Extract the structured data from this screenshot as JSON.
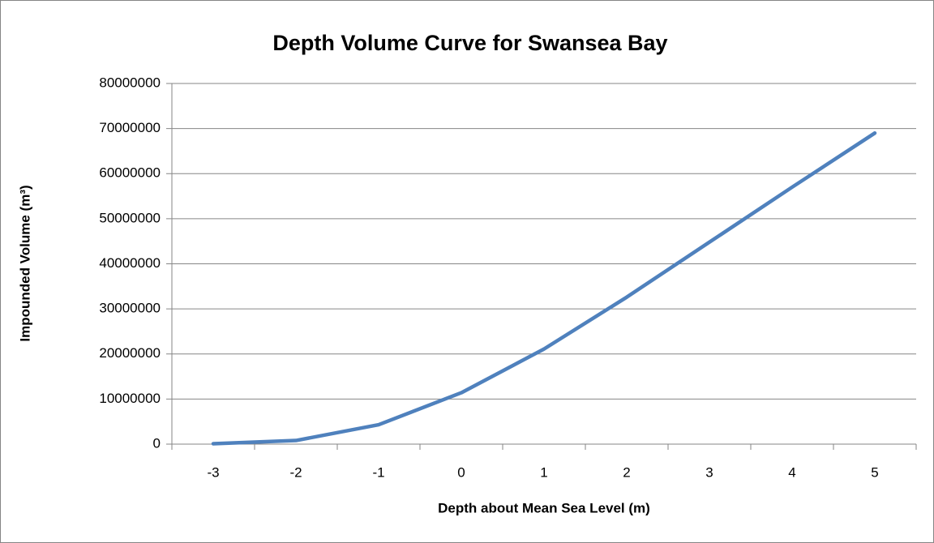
{
  "chart_data": {
    "type": "line",
    "title": "Depth Volume Curve for Swansea Bay",
    "x_label": "Depth about Mean Sea Level (m)",
    "y_label": "Impounded Volume (m³)",
    "categories": [
      "-3",
      "-2",
      "-1",
      "0",
      "1",
      "2",
      "3",
      "4",
      "5"
    ],
    "series": [
      {
        "name": "Impounded Volume",
        "color": "#4f81bd",
        "values": [
          100000,
          800000,
          4300000,
          11400000,
          21100000,
          32600000,
          44800000,
          57000000,
          69000000
        ]
      }
    ],
    "ylim": [
      0,
      80000000
    ],
    "yticks": [
      0,
      10000000,
      20000000,
      30000000,
      40000000,
      50000000,
      60000000,
      70000000,
      80000000
    ],
    "grid": true
  }
}
